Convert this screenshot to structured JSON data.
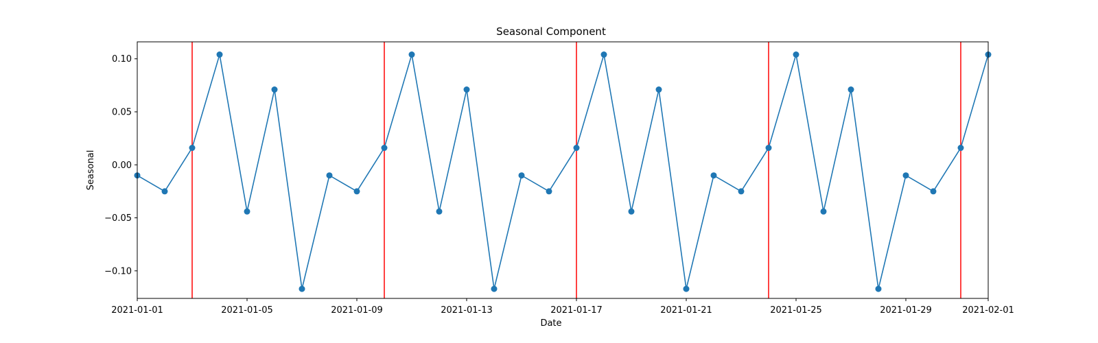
{
  "chart_data": {
    "type": "line",
    "title": "Seasonal Component",
    "xlabel": "Date",
    "ylabel": "Seasonal",
    "xlim": [
      "2021-01-01",
      "2021-02-01"
    ],
    "ylim": [
      -0.126,
      0.116
    ],
    "x_ticks": [
      "2021-01-01",
      "2021-01-05",
      "2021-01-09",
      "2021-01-13",
      "2021-01-17",
      "2021-01-21",
      "2021-01-25",
      "2021-01-29",
      "2021-02-01"
    ],
    "y_ticks": [
      0.1,
      0.05,
      0.0,
      -0.05,
      -0.1
    ],
    "y_tick_labels": [
      "0.10",
      "0.05",
      "0.00",
      "−0.05",
      "−0.10"
    ],
    "grid": false,
    "series": [
      {
        "color": "#1f77b4",
        "marker": "circle",
        "x": [
          "2021-01-01",
          "2021-01-02",
          "2021-01-03",
          "2021-01-04",
          "2021-01-05",
          "2021-01-06",
          "2021-01-07",
          "2021-01-08",
          "2021-01-09",
          "2021-01-10",
          "2021-01-11",
          "2021-01-12",
          "2021-01-13",
          "2021-01-14",
          "2021-01-15",
          "2021-01-16",
          "2021-01-17",
          "2021-01-18",
          "2021-01-19",
          "2021-01-20",
          "2021-01-21",
          "2021-01-22",
          "2021-01-23",
          "2021-01-24",
          "2021-01-25",
          "2021-01-26",
          "2021-01-27",
          "2021-01-28",
          "2021-01-29",
          "2021-01-30",
          "2021-01-31",
          "2021-02-01"
        ],
        "y": [
          -0.01,
          -0.025,
          0.016,
          0.104,
          -0.044,
          0.071,
          -0.117,
          -0.01,
          -0.025,
          0.016,
          0.104,
          -0.044,
          0.071,
          -0.117,
          -0.01,
          -0.025,
          0.016,
          0.104,
          -0.044,
          0.071,
          -0.117,
          -0.01,
          -0.025,
          0.016,
          0.104,
          -0.044,
          0.071,
          -0.117,
          -0.01,
          -0.025,
          0.016,
          0.104
        ]
      }
    ],
    "vertical_lines": {
      "color": "#ff0000",
      "x": [
        "2021-01-03",
        "2021-01-10",
        "2021-01-17",
        "2021-01-24",
        "2021-01-31"
      ]
    }
  }
}
